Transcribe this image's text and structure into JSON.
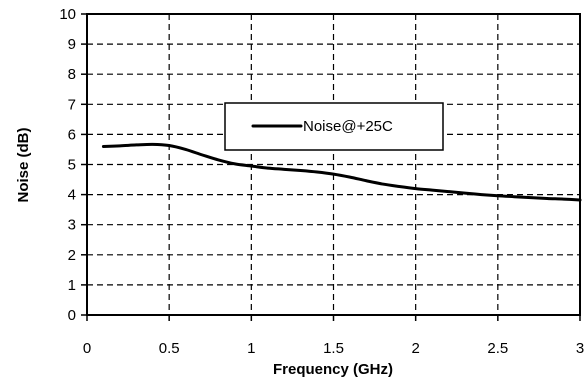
{
  "chart_data": {
    "type": "line",
    "title": "",
    "xlabel": "Frequency (GHz)",
    "ylabel": "Noise (dB)",
    "xlim": [
      0,
      3
    ],
    "ylim": [
      0,
      10
    ],
    "xticks": [
      0,
      0.5,
      1,
      1.5,
      2,
      2.5,
      3
    ],
    "yticks": [
      0,
      1,
      2,
      3,
      4,
      5,
      6,
      7,
      8,
      9,
      10
    ],
    "xtick_labels": [
      "0",
      "0.5",
      "1",
      "1.5",
      "2",
      "2.5",
      "3"
    ],
    "ytick_labels": [
      "0",
      "1",
      "2",
      "3",
      "4",
      "5",
      "6",
      "7",
      "8",
      "9",
      "10"
    ],
    "grid": true,
    "legend_position": "upper-center",
    "series": [
      {
        "name": "Noise@+25C",
        "color": "#000000",
        "x": [
          0.1,
          0.2,
          0.3,
          0.4,
          0.5,
          0.6,
          0.7,
          0.8,
          0.9,
          1.0,
          1.1,
          1.2,
          1.3,
          1.4,
          1.5,
          1.6,
          1.7,
          1.8,
          1.9,
          2.0,
          2.1,
          2.2,
          2.3,
          2.4,
          2.5,
          2.6,
          2.7,
          2.8,
          2.9,
          3.0
        ],
        "y": [
          5.6,
          5.62,
          5.65,
          5.67,
          5.63,
          5.5,
          5.32,
          5.15,
          5.02,
          4.95,
          4.88,
          4.84,
          4.8,
          4.75,
          4.68,
          4.58,
          4.46,
          4.35,
          4.27,
          4.2,
          4.15,
          4.1,
          4.05,
          4.0,
          3.96,
          3.93,
          3.9,
          3.87,
          3.85,
          3.82
        ]
      }
    ]
  }
}
